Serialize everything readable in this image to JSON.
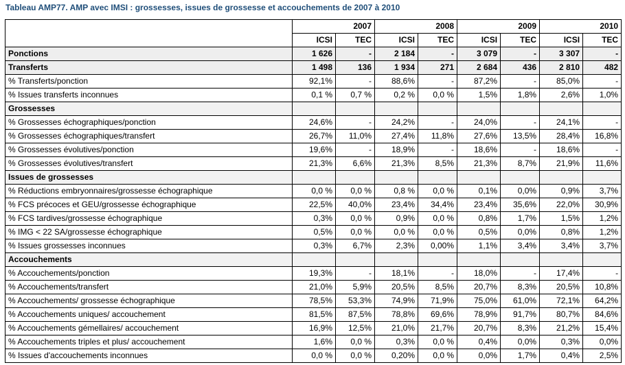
{
  "caption": "Tableau AMP77. AMP avec IMSI : grossesses, issues de grossesse et accouchements de 2007 à 2010",
  "years": [
    "2007",
    "2008",
    "2009",
    "2010"
  ],
  "subheaders": [
    "ICSI",
    "TEC",
    "ICSI",
    "TEC",
    "ICSI",
    "TEC",
    "ICSI",
    "TEC"
  ],
  "rows": [
    {
      "label": "Ponctions",
      "kind": "bold",
      "values": [
        "1 626",
        "-",
        "2 184",
        "-",
        "3 079",
        "-",
        "3 307",
        "-"
      ]
    },
    {
      "label": "Transferts",
      "kind": "bold",
      "values": [
        "1 498",
        "136",
        "1 934",
        "271",
        "2 684",
        "436",
        "2 810",
        "482"
      ]
    },
    {
      "label": "% Transferts/ponction",
      "kind": "normal",
      "values": [
        "92,1%",
        "-",
        "88,6%",
        "-",
        "87,2%",
        "-",
        "85,0%",
        "-"
      ]
    },
    {
      "label": "% Issues transferts inconnues",
      "kind": "normal",
      "values": [
        "0,1 %",
        "0,7 %",
        "0,2 %",
        "0,0 %",
        "1,5%",
        "1,8%",
        "2,6%",
        "1,0%"
      ]
    },
    {
      "label": "Grossesses",
      "kind": "section",
      "values": [
        "",
        "",
        "",
        "",
        "",
        "",
        "",
        ""
      ]
    },
    {
      "label": "% Grossesses échographiques/ponction",
      "kind": "normal",
      "values": [
        "24,6%",
        "-",
        "24,2%",
        "-",
        "24,0%",
        "-",
        "24,1%",
        "-"
      ]
    },
    {
      "label": "% Grossesses échographiques/transfert",
      "kind": "normal",
      "values": [
        "26,7%",
        "11,0%",
        "27,4%",
        "11,8%",
        "27,6%",
        "13,5%",
        "28,4%",
        "16,8%"
      ]
    },
    {
      "label": "% Grossesses évolutives/ponction",
      "kind": "normal",
      "values": [
        "19,6%",
        "-",
        "18,9%",
        "-",
        "18,6%",
        "-",
        "18,6%",
        "-"
      ]
    },
    {
      "label": "% Grossesses évolutives/transfert",
      "kind": "normal",
      "values": [
        "21,3%",
        "6,6%",
        "21,3%",
        "8,5%",
        "21,3%",
        "8,7%",
        "21,9%",
        "11,6%"
      ]
    },
    {
      "label": "Issues de grossesses",
      "kind": "section",
      "values": [
        "",
        "",
        "",
        "",
        "",
        "",
        "",
        ""
      ]
    },
    {
      "label": "% Réductions embryonnaires/grossesse échographique",
      "kind": "normal",
      "values": [
        "0,0 %",
        "0,0 %",
        "0,8 %",
        "0,0 %",
        "0,1%",
        "0,0%",
        "0,9%",
        "3,7%"
      ]
    },
    {
      "label": "% FCS précoces et GEU/grossesse échographique",
      "kind": "normal",
      "values": [
        "22,5%",
        "40,0%",
        "23,4%",
        "34,4%",
        "23,4%",
        "35,6%",
        "22,0%",
        "30,9%"
      ]
    },
    {
      "label": "% FCS tardives/grossesse échographique",
      "kind": "normal",
      "values": [
        "0,3%",
        "0,0 %",
        "0,9%",
        "0,0 %",
        "0,8%",
        "1,7%",
        "1,5%",
        "1,2%"
      ]
    },
    {
      "label": "% IMG < 22 SA/grossesse échographique",
      "kind": "normal",
      "values": [
        "0,5%",
        "0,0 %",
        "0,0 %",
        "0,0 %",
        "0,5%",
        "0,0%",
        "0,8%",
        "1,2%"
      ]
    },
    {
      "label": "% Issues grossesses inconnues",
      "kind": "normal",
      "values": [
        "0,3%",
        "6,7%",
        "2,3%",
        "0,00%",
        "1,1%",
        "3,4%",
        "3,4%",
        "3,7%"
      ]
    },
    {
      "label": "Accouchements",
      "kind": "section",
      "values": [
        "",
        "",
        "",
        "",
        "",
        "",
        "",
        ""
      ]
    },
    {
      "label": "% Accouchements/ponction",
      "kind": "normal",
      "values": [
        "19,3%",
        "-",
        "18,1%",
        "-",
        "18,0%",
        "-",
        "17,4%",
        "-"
      ]
    },
    {
      "label": "% Accouchements/transfert",
      "kind": "normal",
      "values": [
        "21,0%",
        "5,9%",
        "20,5%",
        "8,5%",
        "20,7%",
        "8,3%",
        "20,5%",
        "10,8%"
      ]
    },
    {
      "label": "% Accouchements/ grossesse échographique",
      "kind": "normal",
      "values": [
        "78,5%",
        "53,3%",
        "74,9%",
        "71,9%",
        "75,0%",
        "61,0%",
        "72,1%",
        "64,2%"
      ]
    },
    {
      "label": "% Accouchements uniques/ accouchement",
      "kind": "normal",
      "values": [
        "81,5%",
        "87,5%",
        "78,8%",
        "69,6%",
        "78,9%",
        "91,7%",
        "80,7%",
        "84,6%"
      ]
    },
    {
      "label": "% Accouchements gémellaires/ accouchement",
      "kind": "normal",
      "values": [
        "16,9%",
        "12,5%",
        "21,0%",
        "21,7%",
        "20,7%",
        "8,3%",
        "21,2%",
        "15,4%"
      ]
    },
    {
      "label": "% Accouchements triples et plus/ accouchement",
      "kind": "normal",
      "values": [
        "1,6%",
        "0,0 %",
        "0,3%",
        "0,0 %",
        "0,4%",
        "0,0%",
        "0,3%",
        "0,0%"
      ]
    },
    {
      "label": "% Issues d'accouchements inconnues",
      "kind": "normal",
      "values": [
        "0,0 %",
        "0,0 %",
        "0,20%",
        "0,0 %",
        "0,0%",
        "1,7%",
        "0,4%",
        "2,5%"
      ]
    }
  ]
}
